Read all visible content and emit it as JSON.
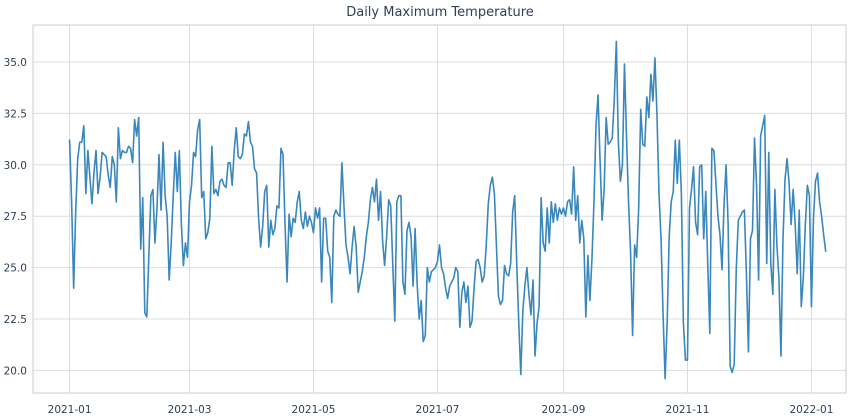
{
  "chart_data": {
    "type": "line",
    "title": "Daily Maximum Temperature",
    "xlabel": "",
    "ylabel": "",
    "x_start": "2021-01-01",
    "x_end": "2021-12-31",
    "xlim": [
      "2020-12-14",
      "2022-01-18"
    ],
    "ylim": [
      18.9,
      36.8
    ],
    "grid": true,
    "legend": "none",
    "colors": {
      "line": "#3a87bb",
      "grid": "#d9dde2",
      "text": "#2f3f55"
    },
    "x_ticks": [
      {
        "date": "2021-01-01",
        "label": "2021-01"
      },
      {
        "date": "2021-03-01",
        "label": "2021-03"
      },
      {
        "date": "2021-05-01",
        "label": "2021-05"
      },
      {
        "date": "2021-07-01",
        "label": "2021-07"
      },
      {
        "date": "2021-09-01",
        "label": "2021-09"
      },
      {
        "date": "2021-11-01",
        "label": "2021-11"
      },
      {
        "date": "2022-01-01",
        "label": "2022-01"
      }
    ],
    "y_ticks": [
      {
        "value": 20.0,
        "label": "20.0"
      },
      {
        "value": 22.5,
        "label": "22.5"
      },
      {
        "value": 25.0,
        "label": "25.0"
      },
      {
        "value": 27.5,
        "label": "27.5"
      },
      {
        "value": 30.0,
        "label": "30.0"
      },
      {
        "value": 32.5,
        "label": "32.5"
      },
      {
        "value": 35.0,
        "label": "35.0"
      }
    ],
    "series": [
      {
        "values": [
          31.2,
          28.2,
          24.0,
          27.7,
          30.3,
          31.1,
          31.1,
          31.9,
          28.6,
          30.7,
          29.4,
          28.1,
          29.6,
          30.7,
          28.6,
          29.4,
          30.6,
          30.5,
          30.4,
          29.5,
          28.9,
          30.4,
          30.0,
          28.2,
          31.8,
          30.3,
          30.7,
          30.6,
          30.6,
          30.9,
          30.8,
          30.1,
          32.2,
          31.4,
          32.3,
          25.9,
          28.4,
          22.8,
          22.6,
          25.6,
          28.5,
          28.8,
          26.2,
          27.9,
          30.5,
          27.8,
          31.1,
          28.5,
          27.5,
          24.4,
          26.2,
          28.5,
          30.6,
          28.7,
          30.7,
          27.1,
          25.1,
          26.2,
          25.5,
          28.2,
          29.0,
          30.6,
          30.4,
          31.7,
          32.2,
          28.4,
          28.7,
          26.4,
          26.7,
          27.4,
          30.9,
          28.6,
          28.8,
          28.5,
          29.2,
          29.3,
          29.0,
          28.9,
          30.1,
          30.1,
          29.0,
          30.7,
          31.8,
          30.4,
          30.3,
          30.5,
          31.5,
          31.4,
          32.1,
          31.1,
          30.9,
          29.8,
          29.6,
          27.4,
          26.0,
          27.0,
          28.7,
          29.0,
          26.0,
          27.3,
          26.6,
          26.9,
          28.0,
          27.9,
          30.8,
          30.5,
          27.1,
          24.3,
          27.6,
          26.5,
          27.4,
          27.2,
          28.2,
          28.7,
          27.3,
          26.9,
          27.7,
          27.0,
          27.5,
          27.2,
          26.7,
          27.9,
          27.4,
          27.9,
          24.3,
          27.4,
          27.4,
          25.8,
          25.5,
          23.3,
          27.5,
          27.8,
          27.6,
          27.5,
          30.1,
          28.0,
          26.1,
          25.5,
          24.7,
          26.0,
          27.0,
          26.0,
          23.8,
          24.3,
          24.8,
          25.5,
          26.5,
          27.2,
          28.3,
          28.9,
          28.2,
          29.3,
          27.3,
          28.7,
          26.3,
          25.1,
          26.5,
          28.3,
          28.0,
          25.2,
          22.4,
          28.2,
          28.5,
          28.5,
          24.3,
          23.7,
          26.8,
          27.2,
          26.5,
          24.1,
          26.9,
          24.2,
          22.5,
          23.4,
          21.4,
          21.7,
          25.0,
          24.3,
          24.8,
          24.9,
          25.0,
          25.3,
          26.1,
          25.0,
          24.7,
          24.0,
          23.5,
          24.1,
          24.3,
          24.5,
          25.0,
          24.8,
          22.1,
          23.8,
          24.3,
          23.3,
          24.1,
          22.1,
          22.4,
          24.0,
          25.3,
          25.4,
          25.0,
          24.3,
          24.6,
          26.1,
          28.1,
          29.0,
          29.4,
          28.6,
          26.1,
          23.6,
          23.2,
          23.4,
          25.1,
          24.7,
          24.6,
          25.2,
          27.7,
          28.5,
          25.2,
          22.3,
          19.8,
          22.9,
          24.1,
          25.0,
          23.7,
          22.7,
          24.4,
          20.7,
          22.3,
          23.1,
          28.4,
          26.2,
          25.8,
          27.9,
          26.2,
          28.2,
          27.2,
          28.1,
          27.3,
          27.9,
          27.6,
          27.9,
          27.5,
          28.2,
          28.3,
          27.6,
          29.9,
          27.3,
          28.5,
          26.2,
          27.3,
          26.4,
          22.6,
          25.6,
          23.4,
          25.4,
          28.2,
          31.9,
          33.4,
          30.2,
          27.3,
          28.8,
          32.3,
          31.0,
          31.1,
          31.3,
          33.2,
          36.0,
          31.1,
          29.2,
          30.0,
          34.9,
          31.4,
          28.2,
          25.8,
          21.7,
          26.1,
          25.5,
          27.9,
          32.7,
          31.0,
          30.9,
          33.3,
          32.3,
          34.4,
          33.1,
          35.2,
          32.4,
          28.6,
          26.4,
          22.7,
          19.6,
          22.3,
          26.5,
          28.2,
          28.7,
          31.2,
          29.1,
          31.2,
          28.6,
          22.3,
          20.5,
          20.5,
          27.9,
          28.8,
          29.9,
          27.2,
          26.6,
          29.9,
          30.0,
          26.4,
          28.7,
          25.1,
          21.8,
          30.8,
          30.7,
          29.1,
          27.5,
          26.6,
          24.9,
          28.1,
          30.0,
          27.1,
          20.2,
          19.9,
          20.3,
          24.9,
          27.3,
          27.5,
          27.7,
          27.8,
          24.7,
          20.9,
          26.4,
          26.8,
          31.3,
          29.0,
          24.4,
          31.4,
          31.9,
          32.4,
          25.2,
          30.6,
          25.2,
          23.7,
          28.8,
          26.1,
          24.5,
          20.7,
          26.4,
          29.3,
          30.3,
          29.1,
          27.1,
          28.8,
          27.1,
          24.7,
          27.8,
          23.1,
          24.5,
          27.1,
          29.0,
          28.5,
          23.1,
          27.4,
          29.2,
          29.6,
          28.2,
          27.5,
          26.6,
          25.8
        ]
      }
    ]
  }
}
